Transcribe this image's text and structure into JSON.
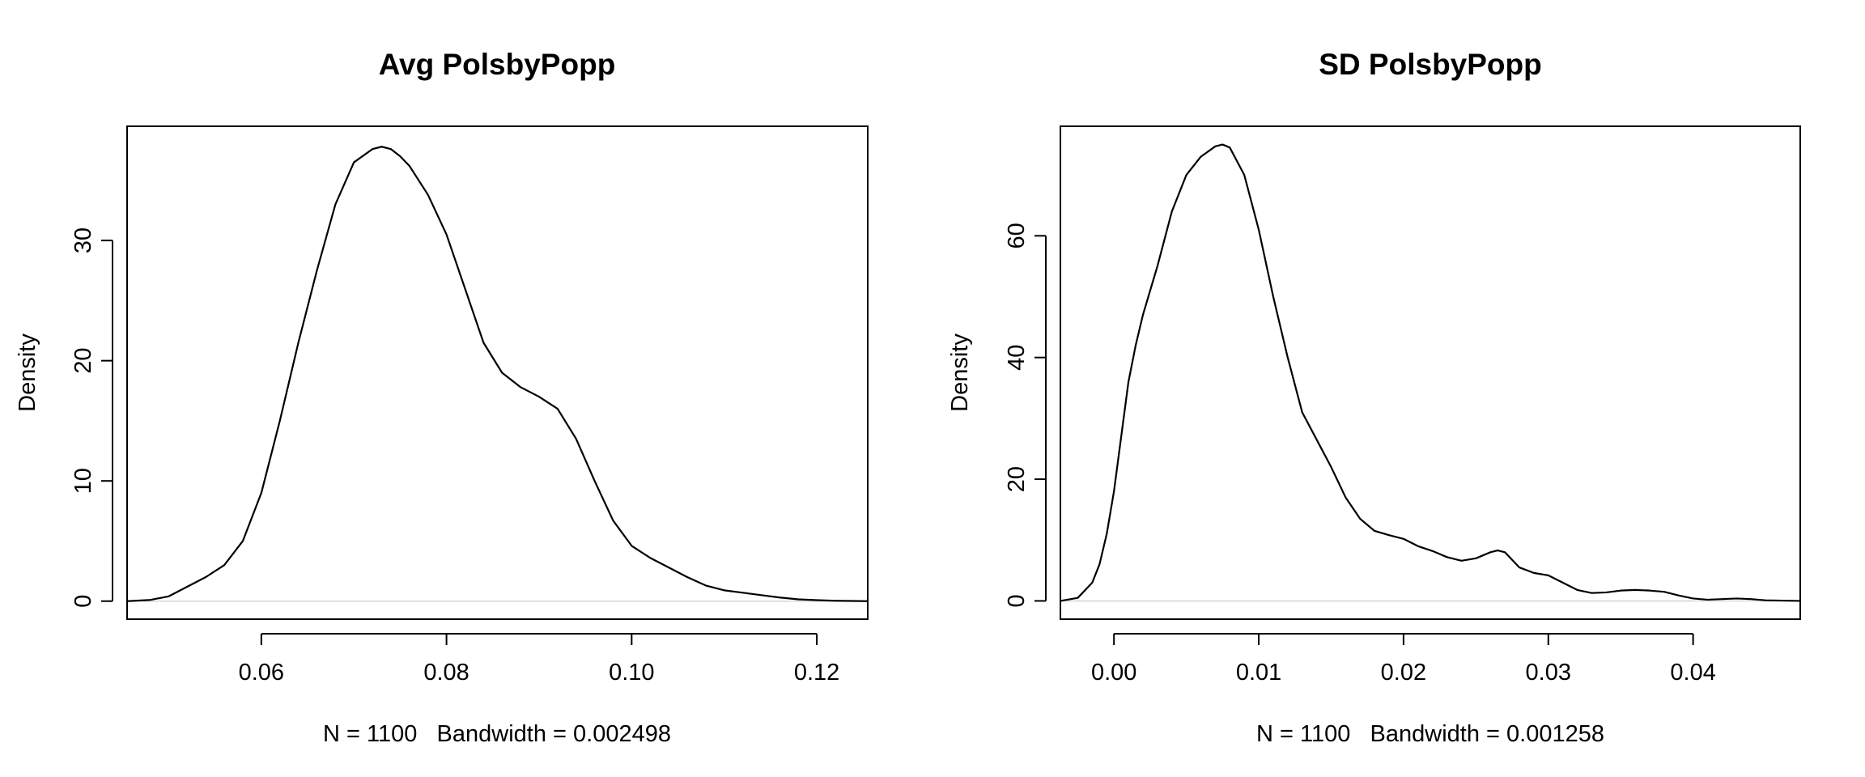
{
  "chart_data": [
    {
      "type": "line",
      "title": "Avg PolsbyPopp",
      "xlabel": "N = 1100   Bandwidth = 0.002498",
      "ylabel": "Density",
      "xlim": [
        0.0455,
        0.1255
      ],
      "ylim": [
        -1.5,
        39.5
      ],
      "xticks": [
        0.06,
        0.08,
        0.1,
        0.12
      ],
      "xtick_labels": [
        "0.06",
        "0.08",
        "0.10",
        "0.12"
      ],
      "yticks": [
        0,
        10,
        20,
        30
      ],
      "ytick_labels": [
        "0",
        "10",
        "20",
        "30"
      ],
      "grid": false,
      "legend": "none",
      "series": [
        {
          "x": [
            0.0455,
            0.048,
            0.05,
            0.052,
            0.054,
            0.056,
            0.058,
            0.06,
            0.062,
            0.064,
            0.066,
            0.068,
            0.07,
            0.072,
            0.073,
            0.074,
            0.075,
            0.076,
            0.078,
            0.08,
            0.082,
            0.084,
            0.086,
            0.088,
            0.09,
            0.092,
            0.094,
            0.096,
            0.098,
            0.1,
            0.102,
            0.104,
            0.106,
            0.108,
            0.11,
            0.112,
            0.114,
            0.116,
            0.118,
            0.12,
            0.122,
            0.1255
          ],
          "y": [
            0.0,
            0.1,
            0.4,
            1.2,
            2.0,
            3.0,
            5.0,
            9.0,
            15.0,
            21.5,
            27.5,
            33.0,
            36.5,
            37.6,
            37.8,
            37.6,
            37.0,
            36.2,
            33.8,
            30.5,
            26.0,
            21.5,
            19.0,
            17.8,
            17.0,
            16.0,
            13.5,
            10.0,
            6.7,
            4.6,
            3.6,
            2.8,
            2.0,
            1.3,
            0.9,
            0.7,
            0.5,
            0.3,
            0.15,
            0.08,
            0.03,
            0.0
          ]
        }
      ]
    },
    {
      "type": "line",
      "title": "SD PolsbyPopp",
      "xlabel": "N = 1100   Bandwidth = 0.001258",
      "ylabel": "Density",
      "xlim": [
        -0.0037,
        0.0474
      ],
      "ylim": [
        -3,
        78
      ],
      "xticks": [
        0.0,
        0.01,
        0.02,
        0.03,
        0.04
      ],
      "xtick_labels": [
        "0.00",
        "0.01",
        "0.02",
        "0.03",
        "0.04"
      ],
      "yticks": [
        0,
        20,
        40,
        60
      ],
      "ytick_labels": [
        "0",
        "20",
        "40",
        "60"
      ],
      "grid": false,
      "legend": "none",
      "series": [
        {
          "x": [
            -0.0037,
            -0.0025,
            -0.0015,
            -0.001,
            -0.0005,
            0.0,
            0.0005,
            0.001,
            0.0015,
            0.002,
            0.003,
            0.004,
            0.005,
            0.006,
            0.007,
            0.0075,
            0.008,
            0.009,
            0.01,
            0.011,
            0.012,
            0.013,
            0.014,
            0.015,
            0.016,
            0.017,
            0.018,
            0.019,
            0.02,
            0.021,
            0.022,
            0.023,
            0.024,
            0.025,
            0.026,
            0.0265,
            0.027,
            0.028,
            0.029,
            0.03,
            0.031,
            0.032,
            0.033,
            0.034,
            0.035,
            0.036,
            0.037,
            0.038,
            0.039,
            0.04,
            0.041,
            0.042,
            0.043,
            0.044,
            0.045,
            0.0474
          ],
          "y": [
            0.0,
            0.5,
            3.0,
            6.0,
            11.0,
            18.0,
            27.0,
            36.0,
            42.0,
            47.0,
            55.0,
            64.0,
            70.0,
            73.0,
            74.7,
            75.0,
            74.5,
            70.0,
            61.0,
            50.0,
            40.0,
            31.0,
            26.5,
            22.0,
            17.0,
            13.5,
            11.5,
            10.8,
            10.2,
            9.0,
            8.2,
            7.2,
            6.6,
            7.0,
            8.0,
            8.3,
            8.0,
            5.5,
            4.6,
            4.2,
            3.0,
            1.8,
            1.3,
            1.4,
            1.7,
            1.8,
            1.7,
            1.5,
            0.9,
            0.4,
            0.2,
            0.3,
            0.4,
            0.3,
            0.1,
            0.0
          ]
        }
      ]
    }
  ]
}
